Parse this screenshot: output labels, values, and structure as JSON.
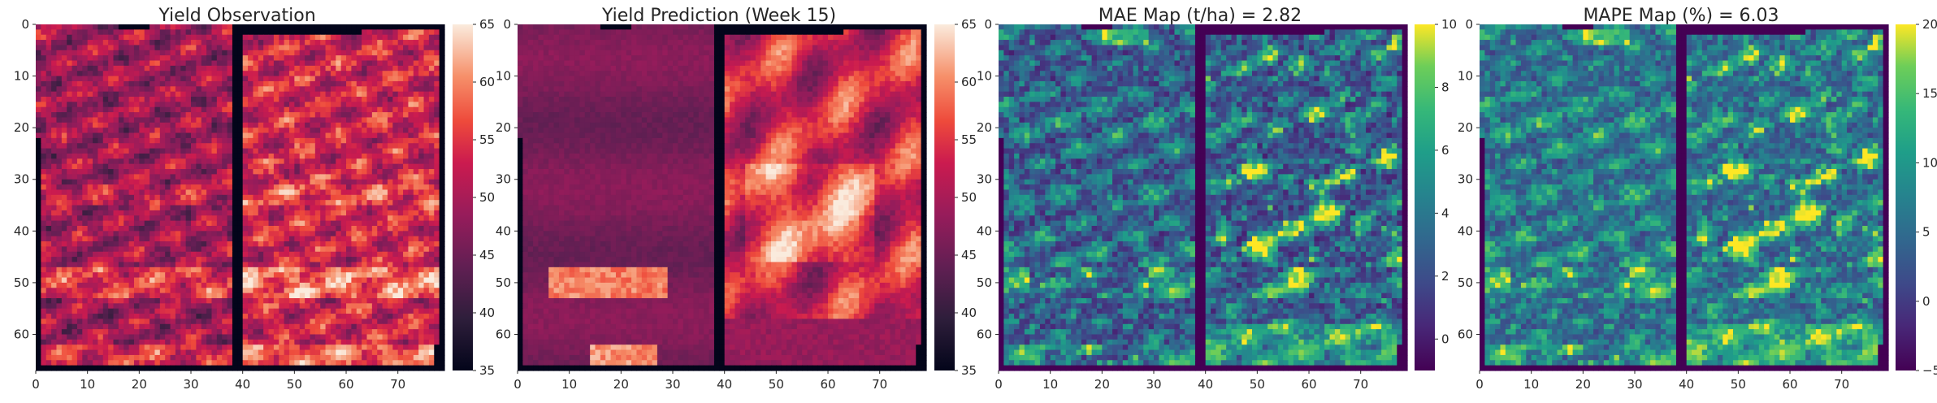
{
  "chart_data": [
    {
      "type": "heatmap",
      "title": "Yield Observation",
      "cmap": "rocket",
      "xticks": [
        0,
        10,
        20,
        30,
        40,
        50,
        60,
        70
      ],
      "yticks": [
        0,
        10,
        20,
        30,
        40,
        50,
        60
      ],
      "xlim": [
        0,
        79
      ],
      "ylim": [
        67,
        0
      ],
      "colorbar_range": [
        35,
        65
      ],
      "colorbar_ticks": [
        35,
        40,
        45,
        50,
        55,
        60,
        65
      ],
      "grid": "off"
    },
    {
      "type": "heatmap",
      "title": "Yield Prediction (Week 15)",
      "cmap": "rocket",
      "xticks": [
        0,
        10,
        20,
        30,
        40,
        50,
        60,
        70
      ],
      "yticks": [
        0,
        10,
        20,
        30,
        40,
        50,
        60
      ],
      "xlim": [
        0,
        79
      ],
      "ylim": [
        67,
        0
      ],
      "colorbar_range": [
        35,
        65
      ],
      "colorbar_ticks": [
        35,
        40,
        45,
        50,
        55,
        60,
        65
      ],
      "grid": "off"
    },
    {
      "type": "heatmap",
      "title": "MAE Map (t/ha) = 2.82",
      "cmap": "viridis",
      "xticks": [
        0,
        10,
        20,
        30,
        40,
        50,
        60,
        70
      ],
      "yticks": [
        0,
        10,
        20,
        30,
        40,
        50,
        60
      ],
      "xlim": [
        0,
        79
      ],
      "ylim": [
        67,
        0
      ],
      "colorbar_range": [
        -1,
        10
      ],
      "colorbar_ticks": [
        0,
        2,
        4,
        6,
        8,
        10
      ],
      "grid": "off"
    },
    {
      "type": "heatmap",
      "title": "MAPE Map (%) = 6.03",
      "cmap": "viridis",
      "xticks": [
        0,
        10,
        20,
        30,
        40,
        50,
        60,
        70
      ],
      "yticks": [
        0,
        10,
        20,
        30,
        40,
        50,
        60
      ],
      "xlim": [
        0,
        79
      ],
      "ylim": [
        67,
        0
      ],
      "colorbar_range": [
        -5,
        20
      ],
      "colorbar_ticks": [
        -5,
        0,
        5,
        10,
        15,
        20
      ],
      "grid": "off"
    }
  ]
}
